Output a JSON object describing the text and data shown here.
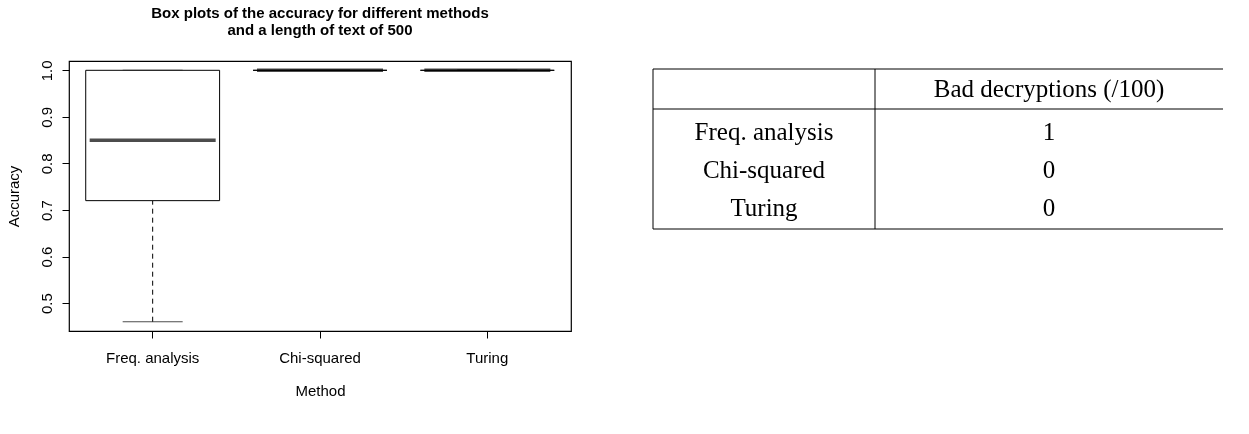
{
  "chart_data": [
    {
      "type": "box",
      "title": "Box plots of the accuracy for different methods\nand a length of text of 500",
      "xlabel": "Method",
      "ylabel": "Accuracy",
      "categories": [
        "Freq. analysis",
        "Chi-squared",
        "Turing"
      ],
      "boxes": [
        {
          "low": 0.46,
          "q1": 0.72,
          "median": 0.85,
          "q3": 1.0,
          "high": 1.0
        },
        {
          "low": 1.0,
          "q1": 1.0,
          "median": 1.0,
          "q3": 1.0,
          "high": 1.0
        },
        {
          "low": 1.0,
          "q1": 1.0,
          "median": 1.0,
          "q3": 1.0,
          "high": 1.0
        }
      ],
      "ylim": [
        0.44,
        1.02
      ],
      "yticks": [
        0.5,
        0.6,
        0.7,
        0.8,
        0.9,
        {
          "value": 1.0,
          "label": "1.0"
        }
      ],
      "grid": false
    },
    {
      "type": "other",
      "title": "Bad decryptions (/100)",
      "categories": [
        "Freq. analysis",
        "Chi-squared",
        "Turing"
      ],
      "values": [
        1,
        0,
        0
      ],
      "data_labels": true
    }
  ]
}
